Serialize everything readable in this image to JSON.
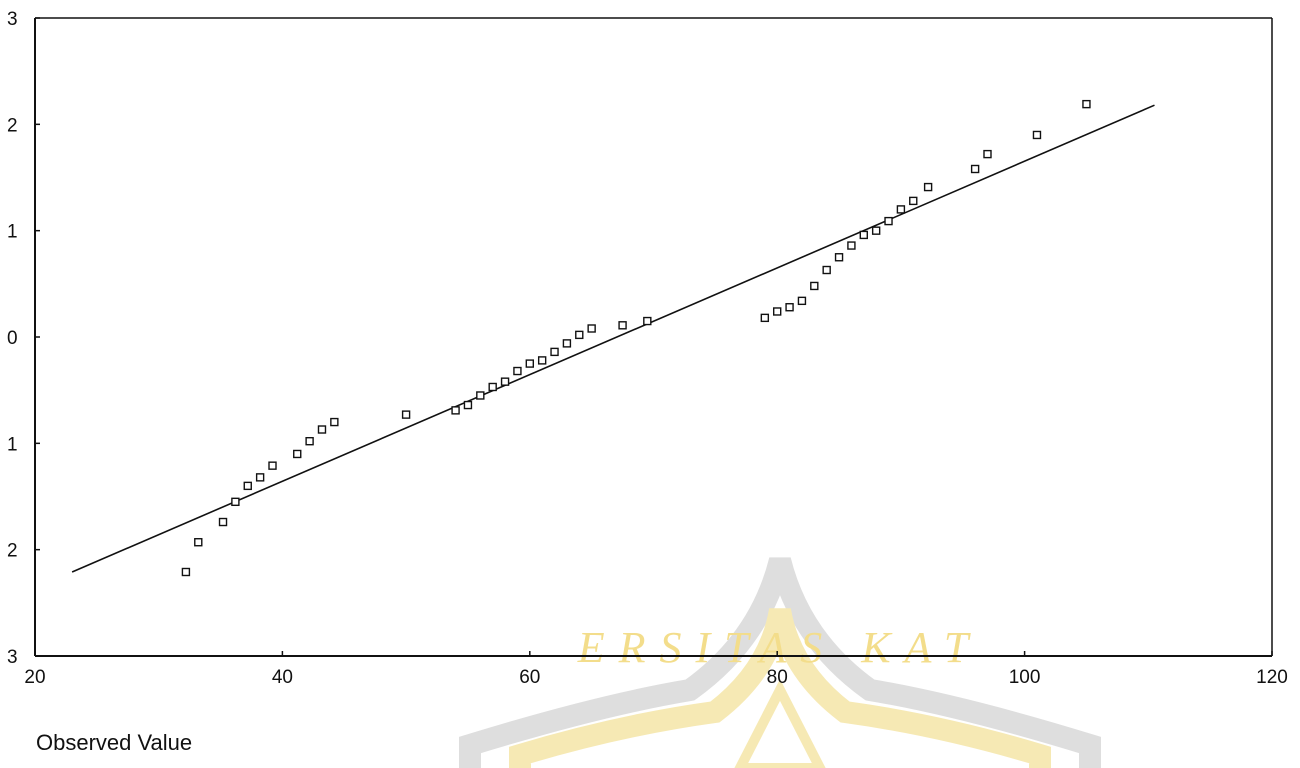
{
  "chart_data": {
    "type": "scatter",
    "xlabel": "Observed Value",
    "xlim": [
      20,
      120
    ],
    "ylim": [
      -3,
      3
    ],
    "x_ticks": [
      "20",
      "40",
      "60",
      "80",
      "100",
      "120"
    ],
    "y_ticks": [
      "3",
      "2",
      "1",
      "0",
      "1",
      "2",
      "3"
    ],
    "grid": false,
    "points": [
      [
        32.2,
        -2.21
      ],
      [
        33.2,
        -1.93
      ],
      [
        35.2,
        -1.74
      ],
      [
        36.2,
        -1.55
      ],
      [
        37.2,
        -1.4
      ],
      [
        38.2,
        -1.32
      ],
      [
        39.2,
        -1.21
      ],
      [
        41.2,
        -1.1
      ],
      [
        42.2,
        -0.98
      ],
      [
        43.2,
        -0.87
      ],
      [
        44.2,
        -0.8
      ],
      [
        50.0,
        -0.73
      ],
      [
        54.0,
        -0.69
      ],
      [
        55.0,
        -0.64
      ],
      [
        56.0,
        -0.55
      ],
      [
        57.0,
        -0.47
      ],
      [
        58.0,
        -0.42
      ],
      [
        59.0,
        -0.32
      ],
      [
        60.0,
        -0.25
      ],
      [
        61.0,
        -0.22
      ],
      [
        62.0,
        -0.14
      ],
      [
        63.0,
        -0.06
      ],
      [
        64.0,
        0.02
      ],
      [
        65.0,
        0.08
      ],
      [
        67.5,
        0.11
      ],
      [
        69.5,
        0.15
      ],
      [
        79.0,
        0.18
      ],
      [
        80.0,
        0.24
      ],
      [
        81.0,
        0.28
      ],
      [
        82.0,
        0.34
      ],
      [
        83.0,
        0.48
      ],
      [
        84.0,
        0.63
      ],
      [
        85.0,
        0.75
      ],
      [
        86.0,
        0.86
      ],
      [
        87.0,
        0.96
      ],
      [
        88.0,
        1.0
      ],
      [
        89.0,
        1.09
      ],
      [
        90.0,
        1.2
      ],
      [
        91.0,
        1.28
      ],
      [
        92.2,
        1.41
      ],
      [
        96.0,
        1.58
      ],
      [
        97.0,
        1.72
      ],
      [
        101.0,
        1.9
      ],
      [
        105.0,
        2.19
      ]
    ],
    "reference_line": [
      [
        23.0,
        -2.21
      ],
      [
        110.5,
        2.18
      ]
    ]
  },
  "watermark": {
    "text": "ERSITAS KAT",
    "colors": {
      "text": "#f2d877",
      "outer_ring": "#d9d9d9",
      "inner_ring": "#f5e6a8"
    }
  },
  "colors": {
    "axis": "#111111",
    "marker": "#111111",
    "line": "#111111",
    "background": "#ffffff"
  }
}
